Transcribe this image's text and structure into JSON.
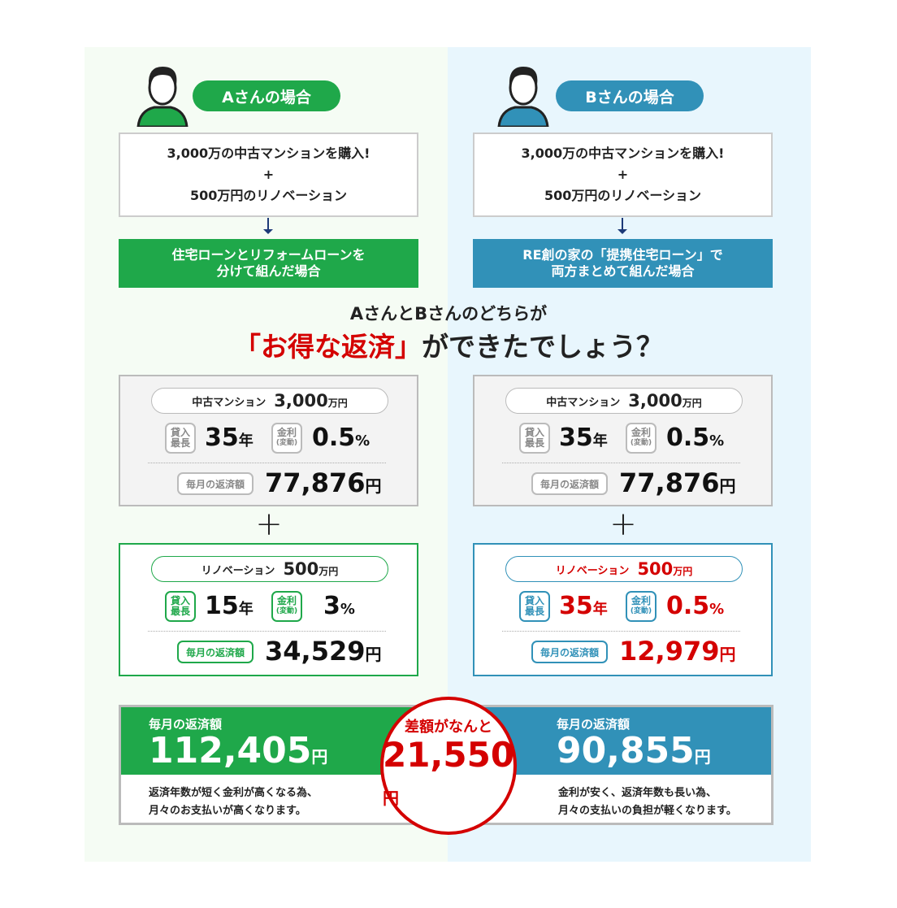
{
  "colors": {
    "green": "#1fa84a",
    "blue": "#3191b8",
    "red": "#d40000"
  },
  "a": {
    "title": "Aさんの場合",
    "intro1": "3,000万の中古マンションを購入!",
    "plus": "+",
    "intro2": "500万円のリノベーション",
    "plan1": "住宅ローンとリフォームローンを",
    "plan2": "分けて組んだ場合",
    "main": {
      "label": "中古マンション",
      "amount": "3,000",
      "unit": "万円",
      "tag_term1": "貸入",
      "tag_term2": "最長",
      "term": "35",
      "term_unit": "年",
      "tag_rate1": "金利",
      "tag_rate2": "(変動)",
      "rate": "0.5",
      "rate_unit": "%",
      "monthly_label": "毎月の返済額",
      "monthly": "77,876",
      "yen": "円"
    },
    "reno": {
      "label": "リノベーション",
      "amount": "500",
      "unit": "万円",
      "tag_term1": "貸入",
      "tag_term2": "最長",
      "term": "15",
      "term_unit": "年",
      "tag_rate1": "金利",
      "tag_rate2": "(変動)",
      "rate": "3",
      "rate_unit": "%",
      "monthly_label": "毎月の返済額",
      "monthly": "34,529",
      "yen": "円"
    },
    "result": {
      "label": "毎月の返済額",
      "value": "112,405",
      "yen": "円",
      "desc1": "返済年数が短く金利が高くなる為、",
      "desc2": "月々のお支払いが高くなります。"
    }
  },
  "b": {
    "title": "Bさんの場合",
    "intro1": "3,000万の中古マンションを購入!",
    "plus": "+",
    "intro2": "500万円のリノベーション",
    "plan1": "RE創の家の「提携住宅ローン」で",
    "plan2": "両方まとめて組んだ場合",
    "main": {
      "label": "中古マンション",
      "amount": "3,000",
      "unit": "万円",
      "tag_term1": "貸入",
      "tag_term2": "最長",
      "term": "35",
      "term_unit": "年",
      "tag_rate1": "金利",
      "tag_rate2": "(変動)",
      "rate": "0.5",
      "rate_unit": "%",
      "monthly_label": "毎月の返済額",
      "monthly": "77,876",
      "yen": "円"
    },
    "reno": {
      "label": "リノベーション",
      "amount": "500",
      "unit": "万円",
      "tag_term1": "貸入",
      "tag_term2": "最長",
      "term": "35",
      "term_unit": "年",
      "tag_rate1": "金利",
      "tag_rate2": "(変動)",
      "rate": "0.5",
      "rate_unit": "%",
      "monthly_label": "毎月の返済額",
      "monthly": "12,979",
      "yen": "円"
    },
    "result": {
      "label": "毎月の返済額",
      "value": "90,855",
      "yen": "円",
      "desc1": "金利が安く、返済年数も長い為、",
      "desc2": "月々の支払いの負担が軽くなります。"
    }
  },
  "question": {
    "line1": "AさんとBさんのどちらが",
    "highlight": "「お得な返済」",
    "rest": "ができたでしょう？"
  },
  "plus_sign": "+",
  "diff": {
    "label": "差額がなんと",
    "value": "21,550",
    "yen": "円"
  }
}
